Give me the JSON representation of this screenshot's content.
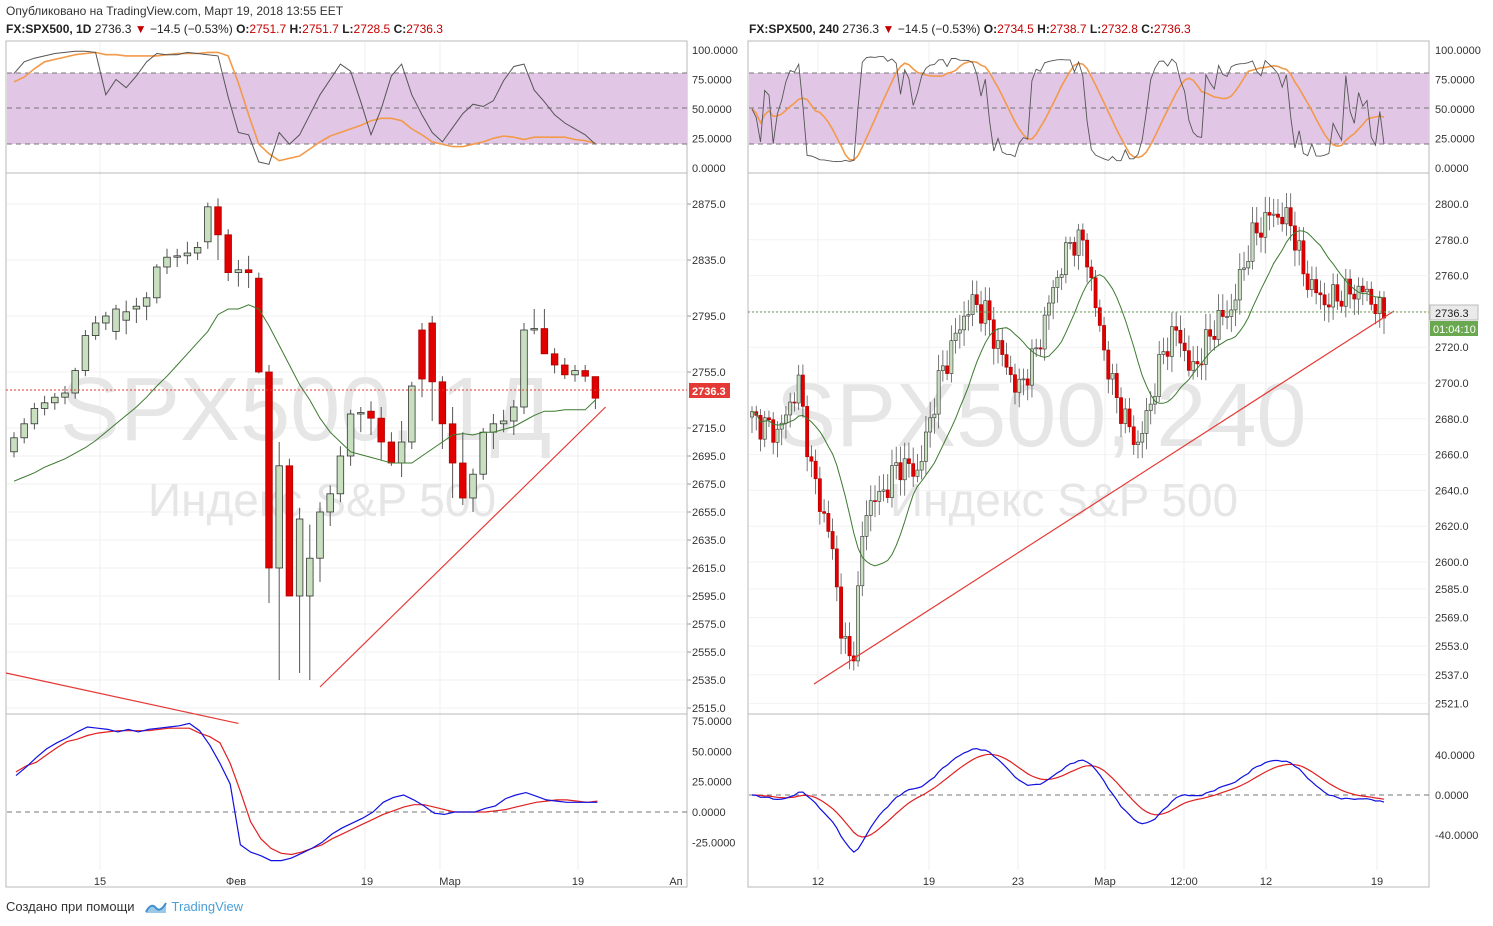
{
  "published": "Опубликовано на TradingView.com, Март 19, 2018 13:55 EET",
  "footer": {
    "created_with": "Создано при помощи",
    "brand": "TradingView"
  },
  "left": {
    "header": {
      "symbol": "FX:SPX500, 1D",
      "last": "2736.3",
      "change": "−14.5 (−0.53%)",
      "o": "2751.7",
      "h": "2751.7",
      "l": "2728.5",
      "c": "2736.3"
    },
    "watermark": {
      "ticker": "SPX500, 1Д",
      "name": "Индекс S&P 500"
    },
    "price_label": "2736.3",
    "x_ticks": [
      "15",
      "Фев",
      "19",
      "Мар",
      "19",
      "Ап"
    ],
    "price_ticks": [
      "2875.0",
      "2835.0",
      "2795.0",
      "2755.0",
      "2715.0",
      "2695.0",
      "2675.0",
      "2655.0",
      "2635.0",
      "2615.0",
      "2595.0",
      "2575.0",
      "2555.0",
      "2535.0",
      "2515.0"
    ],
    "stoch_ticks": [
      "100.0000",
      "75.0000",
      "50.0000",
      "25.0000",
      "0.0000"
    ],
    "macd_ticks": [
      "75.0000",
      "50.0000",
      "25.0000",
      "0.0000",
      "-25.0000"
    ]
  },
  "right": {
    "header": {
      "symbol": "FX:SPX500, 240",
      "last": "2736.3",
      "change": "−14.5 (−0.53%)",
      "o": "2734.5",
      "h": "2738.7",
      "l": "2732.8",
      "c": "2736.3"
    },
    "watermark": {
      "ticker": "SPX500, 240",
      "name": "Индекс S&P 500"
    },
    "price_label": "2736.3",
    "countdown": "01:04:10",
    "x_ticks": [
      "12",
      "19",
      "23",
      "Мар",
      "12:00",
      "12",
      "19"
    ],
    "price_ticks": [
      "2800.0",
      "2780.0",
      "2760.0",
      "2740.0",
      "2720.0",
      "2700.0",
      "2680.0",
      "2660.0",
      "2640.0",
      "2620.0",
      "2600.0",
      "2585.0",
      "2569.0",
      "2553.0",
      "2537.0",
      "2521.0"
    ],
    "stoch_ticks": [
      "100.0000",
      "75.0000",
      "50.0000",
      "25.0000",
      "0.0000"
    ],
    "macd_ticks": [
      "40.0000",
      "0.0000",
      "-40.0000"
    ]
  },
  "colors": {
    "up": "#c8e0c0",
    "down": "#e00000",
    "stoch_band": "#e1c6e6",
    "orange": "#f39a4a",
    "macd_blue": "#1010e0",
    "macd_red": "#e02020",
    "ma_green": "#3c7a30",
    "trend": "#e53935"
  },
  "chart_data": [
    {
      "type": "candlestick",
      "title": "FX:SPX500, 1D",
      "ylim": [
        2515,
        2885
      ],
      "x_ticks": [
        "15",
        "Фев",
        "19",
        "Мар",
        "19",
        "Ап"
      ],
      "candles_ohlc": [
        [
          2698,
          2712,
          2694,
          2708
        ],
        [
          2708,
          2722,
          2704,
          2718
        ],
        [
          2718,
          2733,
          2714,
          2729
        ],
        [
          2729,
          2738,
          2724,
          2733
        ],
        [
          2733,
          2740,
          2728,
          2737
        ],
        [
          2737,
          2745,
          2732,
          2740
        ],
        [
          2740,
          2758,
          2736,
          2756
        ],
        [
          2756,
          2785,
          2752,
          2781
        ],
        [
          2781,
          2795,
          2778,
          2790
        ],
        [
          2790,
          2798,
          2785,
          2795
        ],
        [
          2784,
          2803,
          2778,
          2800
        ],
        [
          2792,
          2806,
          2782,
          2798
        ],
        [
          2800,
          2808,
          2790,
          2802
        ],
        [
          2802,
          2812,
          2792,
          2808
        ],
        [
          2808,
          2832,
          2804,
          2830
        ],
        [
          2830,
          2843,
          2825,
          2837
        ],
        [
          2837,
          2843,
          2830,
          2838
        ],
        [
          2838,
          2848,
          2832,
          2840
        ],
        [
          2840,
          2848,
          2835,
          2844
        ],
        [
          2848,
          2876,
          2843,
          2873
        ],
        [
          2873,
          2879,
          2835,
          2853
        ],
        [
          2853,
          2857,
          2820,
          2826
        ],
        [
          2826,
          2835,
          2816,
          2828
        ],
        [
          2828,
          2838,
          2815,
          2826
        ],
        [
          2822,
          2826,
          2754,
          2755
        ],
        [
          2755,
          2760,
          2590,
          2615
        ],
        [
          2615,
          2705,
          2535,
          2688
        ],
        [
          2688,
          2693,
          2600,
          2595
        ],
        [
          2595,
          2658,
          2540,
          2650
        ],
        [
          2595,
          2646,
          2535,
          2622
        ],
        [
          2622,
          2662,
          2605,
          2655
        ],
        [
          2655,
          2674,
          2645,
          2668
        ],
        [
          2668,
          2702,
          2662,
          2695
        ],
        [
          2695,
          2728,
          2688,
          2725
        ],
        [
          2725,
          2730,
          2712,
          2726
        ],
        [
          2727,
          2734,
          2710,
          2722
        ],
        [
          2722,
          2730,
          2692,
          2705
        ],
        [
          2705,
          2712,
          2688,
          2690
        ],
        [
          2690,
          2720,
          2680,
          2705
        ],
        [
          2705,
          2748,
          2700,
          2745
        ],
        [
          2785,
          2790,
          2737,
          2750
        ],
        [
          2790,
          2795,
          2720,
          2748
        ],
        [
          2748,
          2752,
          2700,
          2718
        ],
        [
          2718,
          2730,
          2665,
          2690
        ],
        [
          2690,
          2712,
          2660,
          2665
        ],
        [
          2665,
          2686,
          2655,
          2682
        ],
        [
          2682,
          2715,
          2678,
          2712
        ],
        [
          2712,
          2725,
          2700,
          2718
        ],
        [
          2718,
          2728,
          2712,
          2720
        ],
        [
          2720,
          2735,
          2710,
          2730
        ],
        [
          2730,
          2790,
          2725,
          2785
        ],
        [
          2785,
          2800,
          2782,
          2786
        ],
        [
          2786,
          2800,
          2768,
          2768
        ],
        [
          2768,
          2772,
          2754,
          2760
        ],
        [
          2760,
          2765,
          2750,
          2753
        ],
        [
          2753,
          2760,
          2748,
          2756
        ],
        [
          2756,
          2760,
          2748,
          2752
        ],
        [
          2751.7,
          2751.7,
          2728.5,
          2736.3
        ]
      ],
      "ma": [
        2677,
        2680,
        2683,
        2687,
        2690,
        2693,
        2697,
        2701,
        2706,
        2712,
        2718,
        2724,
        2730,
        2737,
        2745,
        2752,
        2760,
        2768,
        2776,
        2784,
        2796,
        2800,
        2800,
        2803,
        2800,
        2788,
        2774,
        2760,
        2746,
        2735,
        2722,
        2712,
        2705,
        2698,
        2696,
        2694,
        2692,
        2690,
        2690,
        2690,
        2695,
        2700,
        2705,
        2710,
        2711,
        2710,
        2712,
        2712,
        2714,
        2716,
        2720,
        2724,
        2727,
        2727,
        2728,
        2728,
        2728,
        2735
      ],
      "trendline": [
        [
          30,
          2530
        ],
        [
          58,
          2730
        ]
      ],
      "trendline2_start_end": [
        [
          0,
          2530
        ],
        [
          22,
          2514
        ]
      ],
      "stochastic": {
        "k": [
          80,
          90,
          93,
          95,
          97,
          98,
          99,
          99,
          98,
          62,
          75,
          68,
          78,
          90,
          97,
          96,
          96,
          98,
          97,
          96,
          95,
          60,
          30,
          28,
          5,
          3,
          30,
          20,
          28,
          45,
          62,
          75,
          88,
          82,
          56,
          28,
          50,
          78,
          88,
          62,
          45,
          30,
          22,
          34,
          46,
          54,
          52,
          57,
          74,
          86,
          88,
          66,
          56,
          45,
          38,
          33,
          28,
          20
        ],
        "d": [
          73,
          77,
          84,
          90,
          92,
          94,
          96,
          97,
          98,
          96,
          96,
          95,
          95,
          95,
          95,
          96,
          97,
          97,
          97,
          98,
          98,
          95,
          72,
          45,
          20,
          12,
          6,
          8,
          10,
          16,
          22,
          27,
          30,
          33,
          36,
          40,
          42,
          42,
          40,
          33,
          28,
          22,
          20,
          18,
          18,
          20,
          22,
          25,
          27,
          26,
          24,
          26,
          26,
          26,
          26,
          24,
          23,
          21
        ]
      },
      "macd": {
        "m": [
          30,
          37,
          45,
          52,
          57,
          61,
          66,
          70,
          69,
          68,
          66,
          68,
          66,
          68,
          69,
          70,
          71,
          73,
          67,
          55,
          40,
          23,
          -27,
          -33,
          -36,
          -40,
          -40,
          -38,
          -34,
          -30,
          -25,
          -18,
          -13,
          -9,
          -5,
          0,
          8,
          12,
          14,
          10,
          5,
          -1,
          -2,
          0,
          0,
          0,
          3,
          5,
          11,
          14,
          16,
          13,
          10,
          9,
          8,
          8,
          8,
          8
        ],
        "s": [
          33,
          38,
          41,
          47,
          53,
          58,
          60,
          63,
          65,
          66,
          67,
          67,
          67,
          67,
          68,
          69,
          69,
          69,
          65,
          62,
          57,
          40,
          17,
          -8,
          -22,
          -30,
          -34,
          -35,
          -33,
          -30,
          -27,
          -22,
          -18,
          -14,
          -10,
          -6,
          -2,
          1,
          4,
          6,
          6,
          4,
          2,
          0,
          0,
          0,
          0,
          1,
          2,
          4,
          6,
          8,
          9,
          10,
          10,
          9,
          8,
          9
        ]
      }
    },
    {
      "type": "candlestick",
      "title": "FX:SPX500, 240",
      "ylim": [
        2515,
        2808
      ],
      "x_ticks": [
        "12",
        "19",
        "23",
        "Мар",
        "12:00",
        "12",
        "19"
      ],
      "trendline": [
        [
          0.1,
          2532
        ],
        [
          1,
          2736
        ]
      ]
    }
  ]
}
